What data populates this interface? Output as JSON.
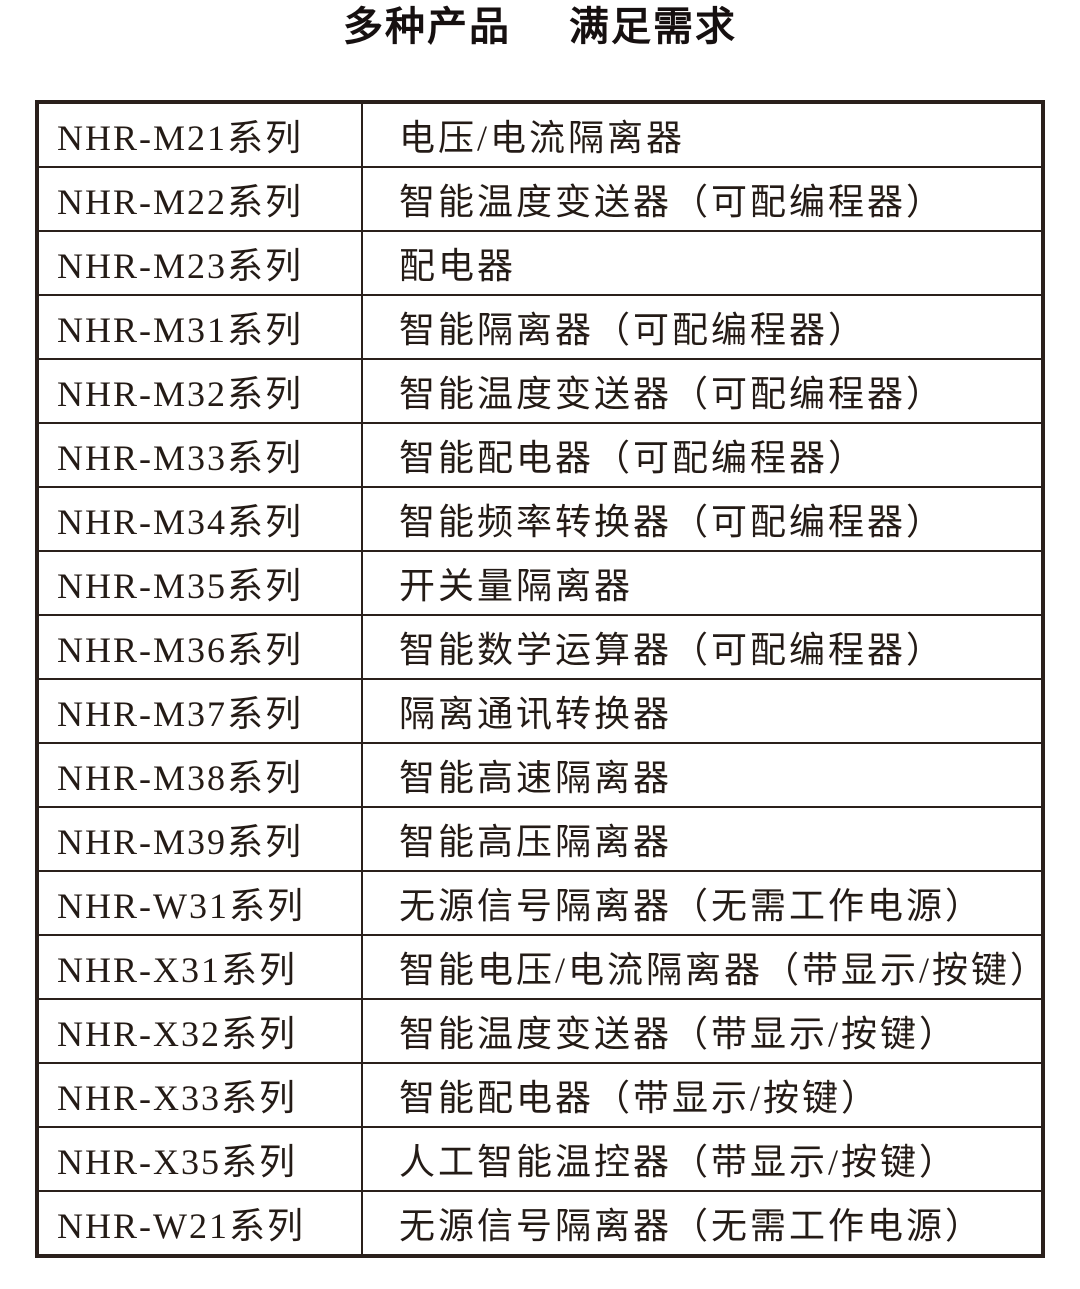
{
  "page": {
    "title": {
      "part1": "多种产品",
      "part2": "满足需求"
    }
  },
  "table": {
    "rows": [
      {
        "series": "NHR-M21系列",
        "description": "电压/电流隔离器"
      },
      {
        "series": "NHR-M22系列",
        "description": "智能温度变送器（可配编程器）"
      },
      {
        "series": "NHR-M23系列",
        "description": "配电器"
      },
      {
        "series": "NHR-M31系列",
        "description": "智能隔离器（可配编程器）"
      },
      {
        "series": "NHR-M32系列",
        "description": "智能温度变送器（可配编程器）"
      },
      {
        "series": "NHR-M33系列",
        "description": "智能配电器（可配编程器）"
      },
      {
        "series": "NHR-M34系列",
        "description": "智能频率转换器（可配编程器）"
      },
      {
        "series": "NHR-M35系列",
        "description": "开关量隔离器"
      },
      {
        "series": "NHR-M36系列",
        "description": "智能数学运算器（可配编程器）"
      },
      {
        "series": "NHR-M37系列",
        "description": "隔离通讯转换器"
      },
      {
        "series": "NHR-M38系列",
        "description": "智能高速隔离器"
      },
      {
        "series": "NHR-M39系列",
        "description": "智能高压隔离器"
      },
      {
        "series": "NHR-W31系列",
        "description": "无源信号隔离器（无需工作电源）"
      },
      {
        "series": "NHR-X31系列",
        "description": "智能电压/电流隔离器（带显示/按键）"
      },
      {
        "series": "NHR-X32系列",
        "description": "智能温度变送器（带显示/按键）"
      },
      {
        "series": "NHR-X33系列",
        "description": "智能配电器（带显示/按键）"
      },
      {
        "series": "NHR-X35系列",
        "description": "人工智能温控器（带显示/按键）"
      },
      {
        "series": "NHR-W21系列",
        "description": "无源信号隔离器（无需工作电源）"
      }
    ]
  },
  "colors": {
    "background": "#ffffff",
    "text": "#241b16",
    "border": "#2a201b",
    "title_text": "#161010"
  }
}
